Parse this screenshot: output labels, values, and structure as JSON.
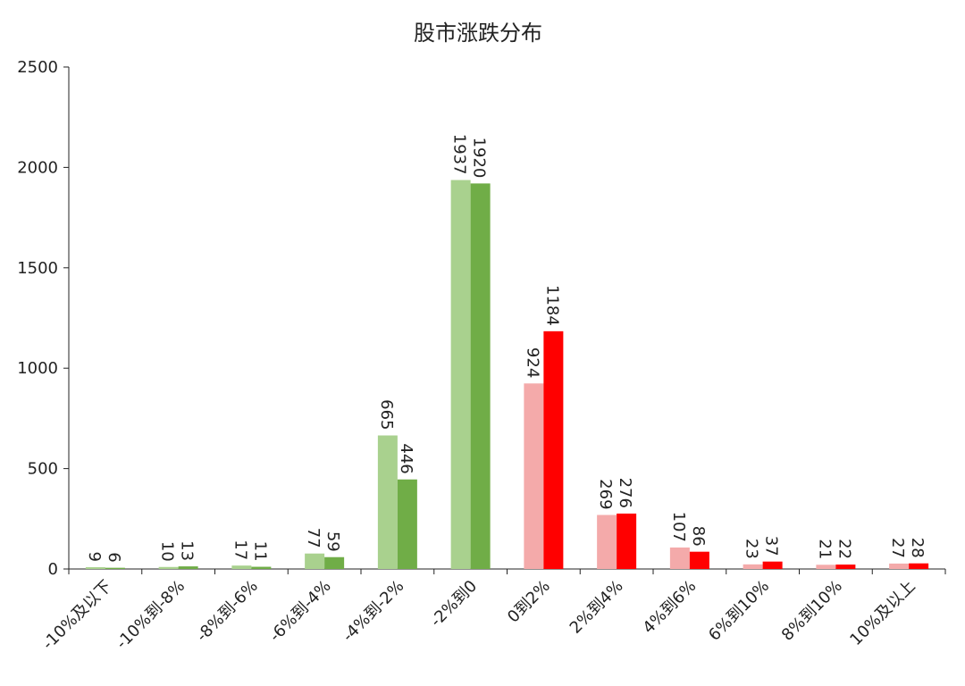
{
  "chart_data": {
    "type": "bar",
    "title": "股市涨跌分布",
    "xlabel": "",
    "ylabel": "",
    "ylim": [
      0,
      2500
    ],
    "yticks": [
      0,
      500,
      1000,
      1500,
      2000,
      2500
    ],
    "grid": false,
    "legend": "none",
    "categories": [
      "-10%及以下",
      "-10%到-8%",
      "-8%到-6%",
      "-6%到-4%",
      "-4%到-2%",
      "-2%到0",
      "0到2%",
      "2%到4%",
      "4%到6%",
      "6%到10%",
      "8%到10%",
      "10%及以上"
    ],
    "series": [
      {
        "values": [
          9,
          10,
          17,
          77,
          665,
          1937,
          924,
          269,
          107,
          23,
          21,
          27
        ],
        "colors": [
          "#a9d18e",
          "#a9d18e",
          "#a9d18e",
          "#a9d18e",
          "#a9d18e",
          "#a9d18e",
          "#f4aaaa",
          "#f4aaaa",
          "#f4aaaa",
          "#f4aaaa",
          "#f4aaaa",
          "#f4aaaa"
        ]
      },
      {
        "values": [
          6,
          13,
          11,
          59,
          446,
          1920,
          1184,
          276,
          86,
          37,
          22,
          28
        ],
        "colors": [
          "#70ad47",
          "#70ad47",
          "#70ad47",
          "#70ad47",
          "#70ad47",
          "#70ad47",
          "#ff0000",
          "#ff0000",
          "#ff0000",
          "#ff0000",
          "#ff0000",
          "#ff0000"
        ]
      }
    ]
  },
  "colors": {
    "down_light": "#a9d18e",
    "down_dark": "#70ad47",
    "up_light": "#f4aaaa",
    "up_dark": "#ff0000",
    "axis": "#222222"
  }
}
